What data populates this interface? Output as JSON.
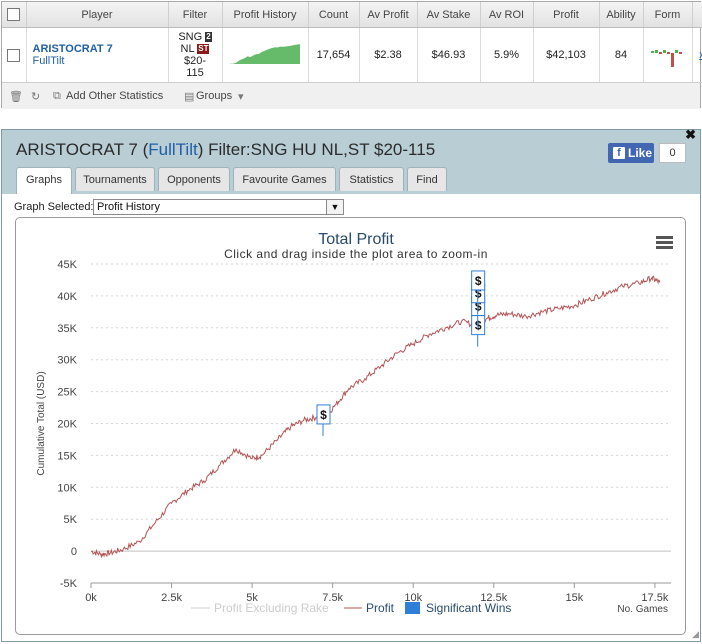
{
  "stats_table": {
    "headers": [
      "Player",
      "Filter",
      "Profit History",
      "Count",
      "Av Profit",
      "Av Stake",
      "Av ROI",
      "Profit",
      "Ability",
      "Form"
    ],
    "row": {
      "player_name": "ARISTOCRAT 7",
      "site": "FullTilt",
      "filter_line1": "SNG",
      "filter_badge1": "2",
      "filter_line2": "NL",
      "filter_badge2": "ST",
      "filter_line3": "$20-",
      "filter_line4": "115",
      "count": "17,654",
      "av_profit": "$2.38",
      "av_stake": "$46.93",
      "av_roi": "5.9%",
      "profit": "$42,103",
      "ability": "84",
      "remove_link": "x"
    },
    "toolbar": {
      "add_stats": "Add Other Statistics",
      "groups": "Groups"
    }
  },
  "graph_panel": {
    "title_player": "ARISTOCRAT 7",
    "title_site": "FullTilt",
    "title_filter": "Filter:SNG HU NL,ST $20-115",
    "like_label": "Like",
    "like_count": "0",
    "tabs": [
      "Graphs",
      "Tournaments",
      "Opponents",
      "Favourite Games",
      "Statistics",
      "Find"
    ],
    "graph_selected_label": "Graph Selected:",
    "graph_selected_value": "Profit History"
  },
  "colors": {
    "profit_line": "#b55454",
    "profit_history_fill": "#66bb6a",
    "significant_wins": "#2f7ed8",
    "header_bg": "#b8cdd4",
    "link": "#1f5fa6"
  },
  "chart_data": {
    "type": "line",
    "title": "Total Profit",
    "subtitle": "Click and drag inside the plot area to zoom-in",
    "xlabel": "No. Games",
    "ylabel": "Cumulative Total (USD)",
    "xlim": [
      0,
      17654
    ],
    "ylim": [
      -5000,
      45000
    ],
    "x_ticks": [
      "0k",
      "2.5k",
      "5k",
      "7.5k",
      "10k",
      "12.5k",
      "15k",
      "17.5k"
    ],
    "y_ticks": [
      "-5K",
      "0",
      "5K",
      "10K",
      "15K",
      "20K",
      "25K",
      "30K",
      "35K",
      "40K",
      "45K"
    ],
    "grid": true,
    "legend_position": "bottom",
    "series": [
      {
        "name": "Profit",
        "x": [
          0,
          300,
          600,
          1000,
          1500,
          2000,
          2500,
          3000,
          3500,
          4000,
          4500,
          5000,
          5300,
          5800,
          6200,
          6600,
          7000,
          7200,
          7600,
          8000,
          8500,
          9000,
          9500,
          10000,
          10500,
          11000,
          11500,
          12000,
          12300,
          12600,
          13000,
          13500,
          14000,
          14500,
          15000,
          15500,
          16000,
          16500,
          17000,
          17400,
          17654
        ],
        "values": [
          0,
          -500,
          -300,
          300,
          1500,
          4500,
          7500,
          9500,
          11000,
          13500,
          16000,
          14500,
          15000,
          17500,
          19500,
          20500,
          21000,
          20700,
          23000,
          25500,
          27000,
          29000,
          31000,
          32500,
          34000,
          35000,
          36000,
          35300,
          36500,
          37000,
          37200,
          36800,
          37500,
          38000,
          38500,
          39500,
          40500,
          41500,
          42000,
          42800,
          42103
        ]
      },
      {
        "name": "Profit Excluding Rake",
        "values": [],
        "hidden": true
      },
      {
        "name": "Significant Wins",
        "markers": [
          {
            "x": 7200,
            "y": 21500,
            "label": "$"
          },
          {
            "x": 12000,
            "y": 35500,
            "label": "$"
          },
          {
            "x": 12000,
            "y": 38500,
            "label": "$"
          },
          {
            "x": 12000,
            "y": 40500,
            "label": "$"
          },
          {
            "x": 12000,
            "y": 42500,
            "label": "$"
          }
        ]
      }
    ]
  }
}
